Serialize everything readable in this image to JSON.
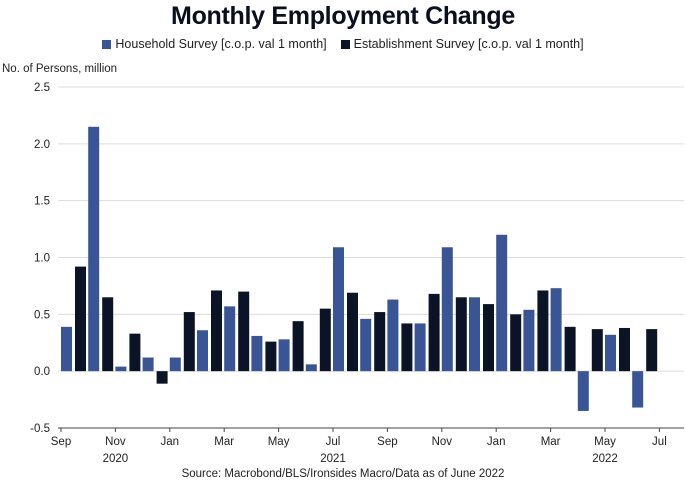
{
  "chart_data": {
    "type": "bar",
    "title": "Monthly Employment Change",
    "ylabel": "No. of Persons, million",
    "source": "Source: Macrobond/BLS/Ironsides Macro/Data as of June 2022",
    "ylim": [
      -0.5,
      2.5
    ],
    "yticks": [
      "2.5",
      "2.0",
      "1.5",
      "1.0",
      "0.5",
      "0.0",
      "-0.5"
    ],
    "ytick_values": [
      2.5,
      2.0,
      1.5,
      1.0,
      0.5,
      0.0,
      -0.5
    ],
    "grid": true,
    "legend_position": "top-center",
    "categories": [
      "2020-09",
      "2020-10",
      "2020-11",
      "2020-12",
      "2021-01",
      "2021-02",
      "2021-03",
      "2021-04",
      "2021-05",
      "2021-06",
      "2021-07",
      "2021-08",
      "2021-09",
      "2021-10",
      "2021-11",
      "2021-12",
      "2022-01",
      "2022-02",
      "2022-03",
      "2022-04",
      "2022-05",
      "2022-06"
    ],
    "xtick_labels": [
      {
        "label": "Sep",
        "index": 0
      },
      {
        "label": "Nov",
        "index": 2
      },
      {
        "label": "Jan",
        "index": 4
      },
      {
        "label": "Mar",
        "index": 6
      },
      {
        "label": "May",
        "index": 8
      },
      {
        "label": "Jul",
        "index": 10
      },
      {
        "label": "Sep",
        "index": 12
      },
      {
        "label": "Nov",
        "index": 14
      },
      {
        "label": "Jan",
        "index": 16
      },
      {
        "label": "Mar",
        "index": 18
      },
      {
        "label": "May",
        "index": 20
      },
      {
        "label": "Jul",
        "index": 22
      }
    ],
    "year_labels": [
      {
        "label": "2020",
        "index": 2
      },
      {
        "label": "2021",
        "index": 10
      },
      {
        "label": "2022",
        "index": 20
      }
    ],
    "series": [
      {
        "name": "Household Survey [c.o.p. val 1 month]",
        "color": "#3a5595",
        "values": [
          0.39,
          2.15,
          0.04,
          0.12,
          0.12,
          0.36,
          0.57,
          0.31,
          0.28,
          0.06,
          1.09,
          0.46,
          0.63,
          0.42,
          1.09,
          0.65,
          1.2,
          0.54,
          0.73,
          -0.35,
          0.32,
          -0.32
        ]
      },
      {
        "name": "Establishment Survey [c.o.p. val 1 month]",
        "color": "#0b1426",
        "values": [
          0.92,
          0.65,
          0.33,
          -0.11,
          0.52,
          0.71,
          0.7,
          0.26,
          0.44,
          0.55,
          0.69,
          0.52,
          0.42,
          0.68,
          0.65,
          0.59,
          0.5,
          0.71,
          0.39,
          0.37,
          0.38,
          0.37
        ]
      }
    ]
  }
}
